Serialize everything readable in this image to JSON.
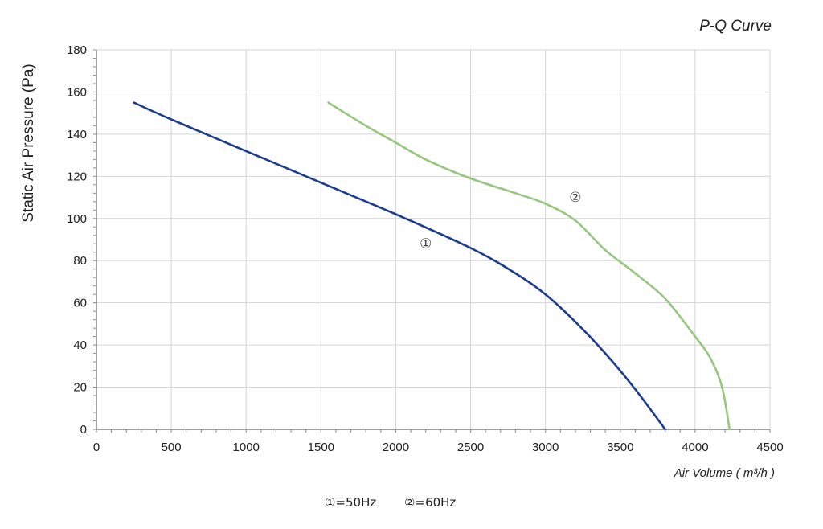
{
  "chart_data": {
    "type": "line",
    "title": "P-Q Curve",
    "xlabel": "Air Volume ( m³/h )",
    "ylabel": "Static Air Pressure  (Pa)",
    "xlim": [
      0,
      4500
    ],
    "ylim": [
      0,
      180
    ],
    "xticks": [
      0,
      500,
      1000,
      1500,
      2000,
      2500,
      3000,
      3500,
      4000,
      4500
    ],
    "yticks": [
      0,
      20,
      40,
      60,
      80,
      100,
      120,
      140,
      160,
      180
    ],
    "grid": true,
    "legend_text": [
      "①=50Hz",
      "②=60Hz"
    ],
    "series": [
      {
        "name": "①",
        "color": "#1a3d8f",
        "x": [
          250,
          500,
          1000,
          1500,
          2000,
          2500,
          2800,
          3000,
          3200,
          3400,
          3600,
          3800
        ],
        "y": [
          155,
          147,
          132,
          117,
          102,
          86,
          74,
          64,
          51,
          36,
          19,
          0
        ]
      },
      {
        "name": "②",
        "color": "#97c67e",
        "x": [
          1550,
          1800,
          2000,
          2200,
          2500,
          2800,
          3000,
          3200,
          3400,
          3600,
          3800,
          4000,
          4100,
          4180,
          4230
        ],
        "y": [
          155,
          144,
          136,
          128,
          119,
          112,
          107,
          99,
          85,
          74,
          62,
          44,
          34,
          20,
          0
        ]
      }
    ]
  }
}
